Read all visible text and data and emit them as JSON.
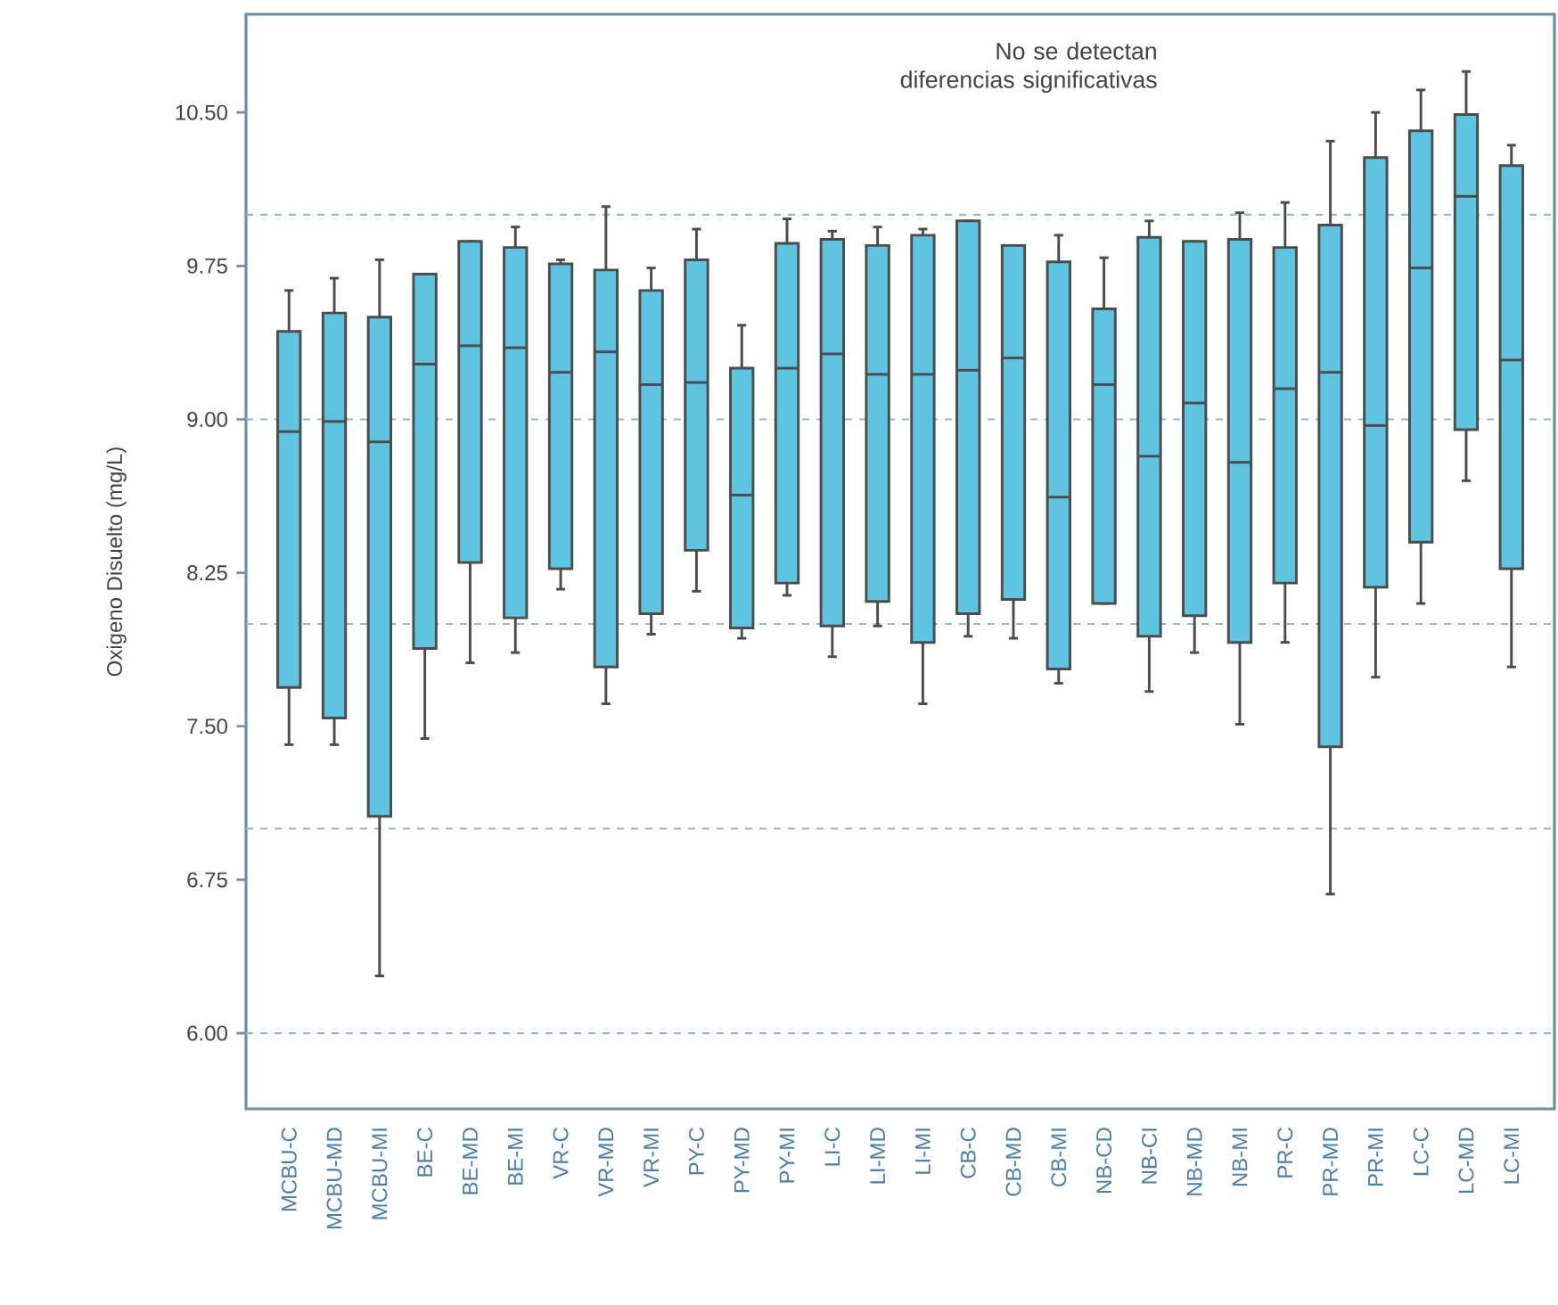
{
  "chart_data": {
    "type": "box",
    "ylabel": "Oxigeno Disuelto (mg/L)",
    "annotations": [
      "No se detectan diferencias significativas"
    ],
    "categories": [
      "MCBU-C",
      "MCBU-MD",
      "MCBU-MI",
      "BE-C",
      "BE-MD",
      "BE-MI",
      "VR-C",
      "VR-MD",
      "VR-MI",
      "PY-C",
      "PY-MD",
      "PY-MI",
      "LI-C",
      "LI-MD",
      "LI-MI",
      "CB-C",
      "CB-MD",
      "CB-MI",
      "NB-CD",
      "NB-CI",
      "NB-MD",
      "NB-MI",
      "PR-C",
      "PR-MD",
      "PR-MI",
      "LC-C",
      "LC-MD",
      "LC-MI"
    ],
    "color": "#5ec4e0",
    "boxes": [
      {
        "low": 7.41,
        "q1": 7.69,
        "median": 8.94,
        "q3": 9.43,
        "high": 9.63
      },
      {
        "low": 7.41,
        "q1": 7.54,
        "median": 8.99,
        "q3": 9.52,
        "high": 9.69
      },
      {
        "low": 6.28,
        "q1": 7.06,
        "median": 8.89,
        "q3": 9.5,
        "high": 9.78
      },
      {
        "low": 7.44,
        "q1": 7.88,
        "median": 9.27,
        "q3": 9.71,
        "high": 9.71
      },
      {
        "low": 7.81,
        "q1": 8.3,
        "median": 9.36,
        "q3": 9.87,
        "high": 9.87
      },
      {
        "low": 7.86,
        "q1": 8.03,
        "median": 9.35,
        "q3": 9.84,
        "high": 9.94
      },
      {
        "low": 8.17,
        "q1": 8.27,
        "median": 9.23,
        "q3": 9.76,
        "high": 9.78
      },
      {
        "low": 7.61,
        "q1": 7.79,
        "median": 9.33,
        "q3": 9.73,
        "high": 10.04
      },
      {
        "low": 7.95,
        "q1": 8.05,
        "median": 9.17,
        "q3": 9.63,
        "high": 9.74
      },
      {
        "low": 8.16,
        "q1": 8.36,
        "median": 9.18,
        "q3": 9.78,
        "high": 9.93
      },
      {
        "low": 7.93,
        "q1": 7.98,
        "median": 8.63,
        "q3": 9.25,
        "high": 9.46
      },
      {
        "low": 8.14,
        "q1": 8.2,
        "median": 9.25,
        "q3": 9.86,
        "high": 9.98
      },
      {
        "low": 7.84,
        "q1": 7.99,
        "median": 9.32,
        "q3": 9.88,
        "high": 9.92
      },
      {
        "low": 7.99,
        "q1": 8.11,
        "median": 9.22,
        "q3": 9.85,
        "high": 9.94
      },
      {
        "low": 7.61,
        "q1": 7.91,
        "median": 9.22,
        "q3": 9.9,
        "high": 9.93
      },
      {
        "low": 7.94,
        "q1": 8.05,
        "median": 9.24,
        "q3": 9.97,
        "high": 9.97
      },
      {
        "low": 7.93,
        "q1": 8.12,
        "median": 9.3,
        "q3": 9.85,
        "high": 9.85
      },
      {
        "low": 7.71,
        "q1": 7.78,
        "median": 8.62,
        "q3": 9.77,
        "high": 9.9
      },
      {
        "low": 8.1,
        "q1": 8.1,
        "median": 9.17,
        "q3": 9.54,
        "high": 9.79
      },
      {
        "low": 7.67,
        "q1": 7.94,
        "median": 8.82,
        "q3": 9.89,
        "high": 9.97
      },
      {
        "low": 7.86,
        "q1": 8.04,
        "median": 9.08,
        "q3": 9.87,
        "high": 9.87
      },
      {
        "low": 7.51,
        "q1": 7.91,
        "median": 8.79,
        "q3": 9.88,
        "high": 10.01
      },
      {
        "low": 7.91,
        "q1": 8.2,
        "median": 9.15,
        "q3": 9.84,
        "high": 10.06
      },
      {
        "low": 6.68,
        "q1": 7.4,
        "median": 9.23,
        "q3": 9.95,
        "high": 10.36
      },
      {
        "low": 7.74,
        "q1": 8.18,
        "median": 8.97,
        "q3": 10.28,
        "high": 10.5
      },
      {
        "low": 8.1,
        "q1": 8.4,
        "median": 9.74,
        "q3": 10.41,
        "high": 10.61
      },
      {
        "low": 8.7,
        "q1": 8.95,
        "median": 10.09,
        "q3": 10.49,
        "high": 10.7
      },
      {
        "low": 7.79,
        "q1": 8.27,
        "median": 9.29,
        "q3": 10.24,
        "high": 10.34
      }
    ],
    "ylim": [
      5.63,
      10.98
    ],
    "yticks": [
      {
        "value": 6,
        "label": "6.00"
      },
      {
        "value": 6.75,
        "label": "6.75"
      },
      {
        "value": 7.5,
        "label": "7.50"
      },
      {
        "value": 8.25,
        "label": "8.25"
      },
      {
        "value": 9,
        "label": "9.00"
      },
      {
        "value": 9.75,
        "label": "9.75"
      },
      {
        "value": 10.5,
        "label": "10.50"
      }
    ],
    "ref_lines": [
      {
        "axis": "y",
        "value": 6,
        "color": "#9bb8c8",
        "line_style": "dashed"
      },
      {
        "axis": "y",
        "value": 7,
        "color": "#9bb8c8",
        "line_style": "dashed"
      },
      {
        "axis": "y",
        "value": 8,
        "color": "#9bb8c8",
        "line_style": "dashed"
      },
      {
        "axis": "y",
        "value": 9,
        "color": "#9bb8c8",
        "line_style": "dashed"
      },
      {
        "axis": "y",
        "value": 10,
        "color": "#9bb8c8",
        "line_style": "dashed"
      }
    ]
  }
}
